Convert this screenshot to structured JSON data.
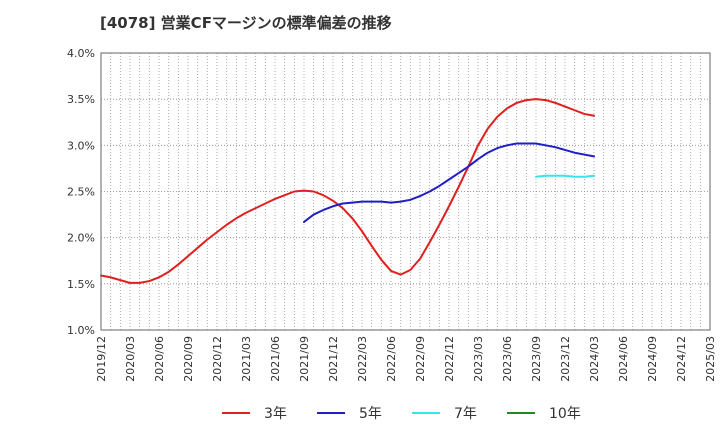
{
  "chart_data": {
    "type": "line",
    "title": "[4078]  営業CFマージンの標準偏差の推移",
    "xlabel": "",
    "ylabel": "",
    "ylim": [
      1.0,
      4.0
    ],
    "yticks": [
      "1.0%",
      "1.5%",
      "2.0%",
      "2.5%",
      "3.0%",
      "3.5%",
      "4.0%"
    ],
    "x_categories": [
      "2019/12",
      "2020/03",
      "2020/06",
      "2020/09",
      "2020/12",
      "2021/03",
      "2021/06",
      "2021/09",
      "2021/12",
      "2022/03",
      "2022/06",
      "2022/09",
      "2022/12",
      "2023/03",
      "2023/06",
      "2023/09",
      "2023/12",
      "2024/03",
      "2024/06",
      "2024/09",
      "2024/12",
      "2025/03"
    ],
    "grid": true,
    "legend_position": "bottom",
    "series": [
      {
        "name": "3年",
        "color": "#e0201f",
        "x": [
          "2019/12",
          "2020/01",
          "2020/02",
          "2020/03",
          "2020/04",
          "2020/05",
          "2020/06",
          "2020/07",
          "2020/08",
          "2020/09",
          "2020/10",
          "2020/11",
          "2020/12",
          "2021/01",
          "2021/02",
          "2021/03",
          "2021/04",
          "2021/05",
          "2021/06",
          "2021/07",
          "2021/08",
          "2021/09",
          "2021/10",
          "2021/11",
          "2021/12",
          "2022/01",
          "2022/02",
          "2022/03",
          "2022/04",
          "2022/05",
          "2022/06",
          "2022/07",
          "2022/08",
          "2022/09",
          "2022/10",
          "2022/11",
          "2022/12",
          "2023/01",
          "2023/02",
          "2023/03",
          "2023/04",
          "2023/05",
          "2023/06",
          "2023/07",
          "2023/08",
          "2023/09",
          "2023/10",
          "2023/11",
          "2023/12",
          "2024/01",
          "2024/02",
          "2024/03"
        ],
        "values": [
          1.59,
          1.57,
          1.54,
          1.51,
          1.51,
          1.53,
          1.57,
          1.63,
          1.71,
          1.8,
          1.89,
          1.98,
          2.06,
          2.14,
          2.21,
          2.27,
          2.32,
          2.37,
          2.42,
          2.46,
          2.5,
          2.51,
          2.5,
          2.46,
          2.4,
          2.32,
          2.21,
          2.07,
          1.91,
          1.76,
          1.64,
          1.6,
          1.65,
          1.77,
          1.95,
          2.14,
          2.34,
          2.55,
          2.77,
          3.0,
          3.18,
          3.31,
          3.4,
          3.46,
          3.49,
          3.5,
          3.49,
          3.46,
          3.42,
          3.38,
          3.34,
          3.32
        ]
      },
      {
        "name": "5年",
        "color": "#1f1fc8",
        "x": [
          "2021/09",
          "2021/10",
          "2021/11",
          "2021/12",
          "2022/01",
          "2022/02",
          "2022/03",
          "2022/04",
          "2022/05",
          "2022/06",
          "2022/07",
          "2022/08",
          "2022/09",
          "2022/10",
          "2022/11",
          "2022/12",
          "2023/01",
          "2023/02",
          "2023/03",
          "2023/04",
          "2023/05",
          "2023/06",
          "2023/07",
          "2023/08",
          "2023/09",
          "2023/10",
          "2023/11",
          "2023/12",
          "2024/01",
          "2024/02",
          "2024/03"
        ],
        "values": [
          2.17,
          2.25,
          2.3,
          2.34,
          2.37,
          2.38,
          2.39,
          2.39,
          2.39,
          2.38,
          2.39,
          2.41,
          2.45,
          2.5,
          2.56,
          2.63,
          2.7,
          2.77,
          2.85,
          2.92,
          2.97,
          3.0,
          3.02,
          3.02,
          3.02,
          3.0,
          2.98,
          2.95,
          2.92,
          2.9,
          2.88
        ]
      },
      {
        "name": "7年",
        "color": "#33e6ee",
        "x": [
          "2023/09",
          "2023/10",
          "2023/11",
          "2023/12",
          "2024/01",
          "2024/02",
          "2024/03"
        ],
        "values": [
          2.66,
          2.67,
          2.67,
          2.67,
          2.66,
          2.66,
          2.67
        ]
      },
      {
        "name": "10年",
        "color": "#1e8a1e",
        "x": [],
        "values": []
      }
    ]
  }
}
